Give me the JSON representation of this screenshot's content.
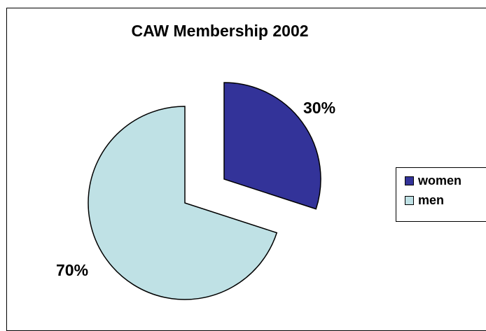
{
  "chart_data": {
    "type": "pie",
    "title": "CAW Membership 2002",
    "slices": [
      {
        "name": "women",
        "value": 30,
        "label": "30%",
        "color": "#333399"
      },
      {
        "name": "men",
        "value": 70,
        "label": "70%",
        "color": "#bfe1e5"
      }
    ],
    "legend": {
      "placement": "right",
      "entries": [
        "women",
        "men"
      ]
    },
    "exploded_slice": "women"
  }
}
